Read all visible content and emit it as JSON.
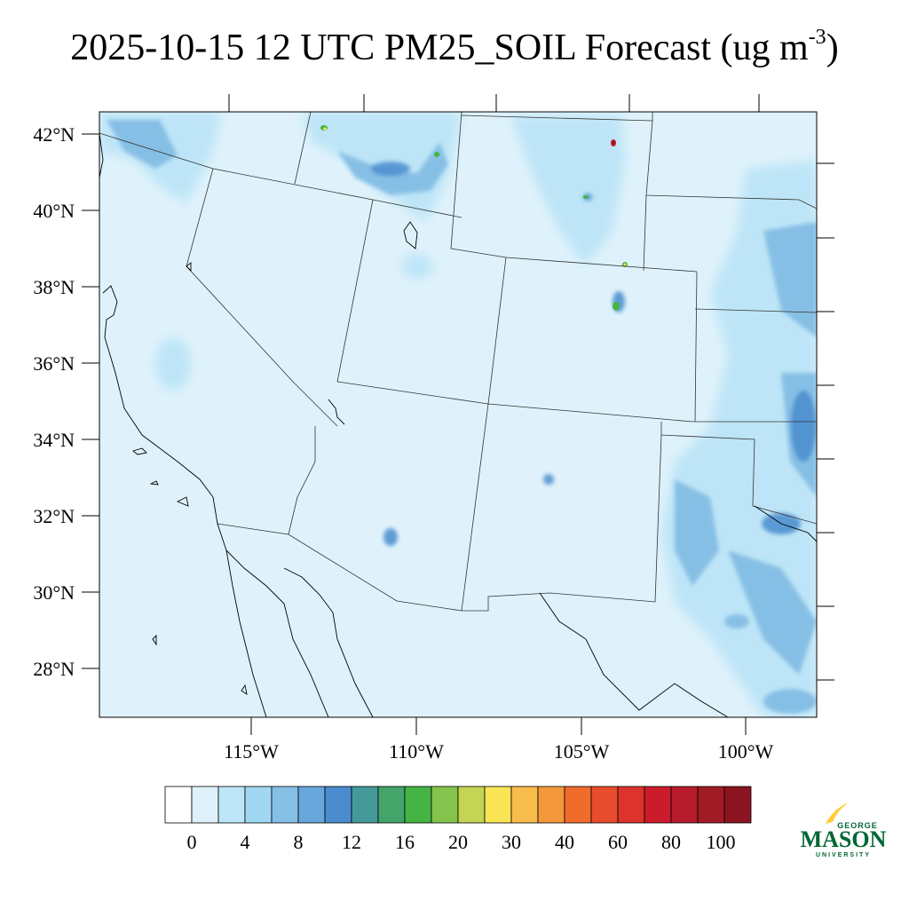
{
  "title": {
    "main": "2025-10-15 12 UTC PM25_SOIL Forecast (ug m",
    "superscript": "-3",
    "close": ")"
  },
  "map": {
    "lat_labels": [
      "42°N",
      "40°N",
      "38°N",
      "36°N",
      "34°N",
      "32°N",
      "30°N",
      "28°N"
    ],
    "lon_labels": [
      "115°W",
      "110°W",
      "105°W",
      "100°W"
    ],
    "background_color": "#dff2fb",
    "coast_color": "#000000",
    "border_color": "#333333"
  },
  "colorbar": {
    "labels": [
      "0",
      "4",
      "8",
      "12",
      "16",
      "20",
      "30",
      "40",
      "60",
      "80",
      "100"
    ],
    "colors": [
      "#ffffff",
      "#dff2fb",
      "#bde5f7",
      "#a0d7f3",
      "#86bfe5",
      "#68a7dc",
      "#4a8cce",
      "#449a9a",
      "#44a46a",
      "#44b444",
      "#84c44c",
      "#c4d454",
      "#f8e454",
      "#f8bc4c",
      "#f4983c",
      "#f06c2c",
      "#e84c2c",
      "#dc342c",
      "#cc1c2c",
      "#b81c2c",
      "#a01c24",
      "#8c1420"
    ]
  },
  "logo": {
    "line1": "GEORGE",
    "line2": "MASON",
    "line3": "UNIVERSITY",
    "green": "#006633",
    "gold": "#ffcc33"
  }
}
